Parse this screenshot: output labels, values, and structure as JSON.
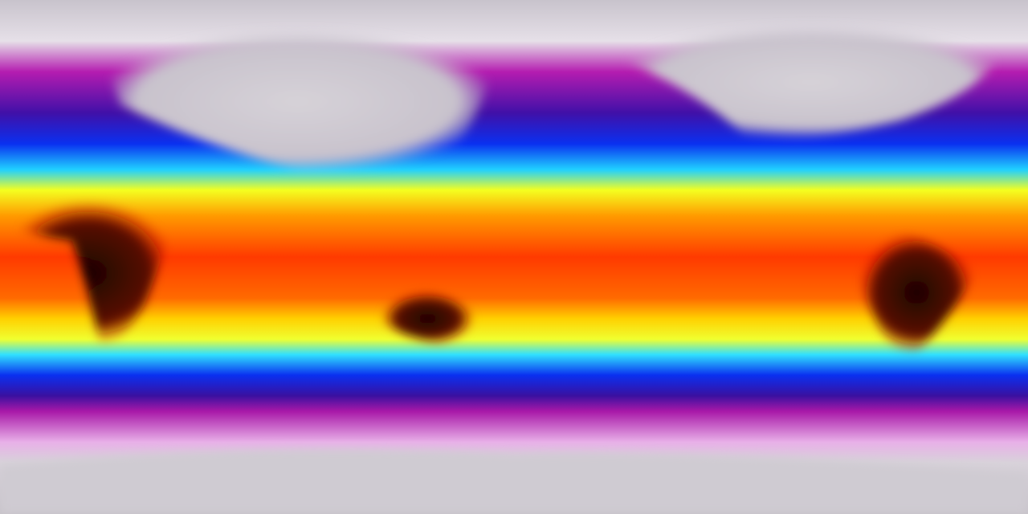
{
  "map": {
    "projection": "equirectangular",
    "colormap": [
      "#d8d4dc",
      "#f2e6f2",
      "#b01ca8",
      "#3a10a8",
      "#0a28f0",
      "#22c8ff",
      "#6effd0",
      "#f6ff1a",
      "#ffb000",
      "#ff4a00",
      "#e01000",
      "#3a0a08"
    ],
    "land_cold_color": "#cfc9d2",
    "land_hot_color": "#2a0806"
  }
}
